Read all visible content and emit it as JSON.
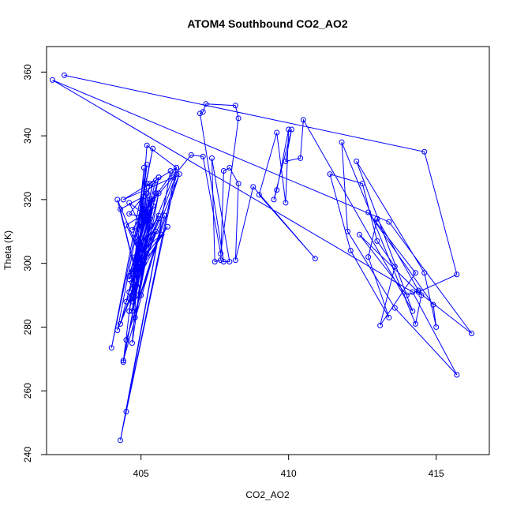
{
  "chart_data": {
    "type": "line",
    "title": "ATOM4 Southbound CO2_AO2",
    "xlabel": "CO2_AO2",
    "ylabel": "Theta (K)",
    "xlim": [
      401.8,
      416.8
    ],
    "ylim": [
      240,
      368
    ],
    "xticks": [
      405,
      410,
      415
    ],
    "yticks": [
      240,
      260,
      280,
      300,
      320,
      340,
      360
    ],
    "grid": false,
    "line_color": "#0000ff",
    "marker": "open-circle",
    "series": [
      {
        "x": [
          402.4,
          414.6,
          415.7,
          414.4,
          416.2,
          413.4,
          402.0,
          414.2,
          415.7,
          413.6,
          412.0,
          411.8,
          414.3,
          414.5,
          412.4,
          414.0,
          414.4,
          413.0,
          412.7,
          413.4,
          412.1,
          411.4,
          412.5,
          413.0,
          413.6,
          413.1,
          414.3,
          412.7,
          414.9,
          415.0,
          414.6,
          412.3,
          414.2,
          410.5,
          410.4,
          409.9,
          410.1,
          409.5,
          409.6,
          410.0,
          409.9,
          409.6,
          409.0,
          410.9,
          408.8,
          408.2,
          408.3,
          408.0,
          407.8,
          407.7,
          407.5,
          407.4,
          408.0,
          407.8,
          407.0,
          407.1,
          407.2,
          408.2,
          408.3,
          407.7,
          407.1,
          406.7,
          405.0,
          406.2,
          405.2,
          404.9,
          406.1,
          404.4,
          406.2,
          404.3,
          406.0,
          404.5,
          406.2,
          404.2,
          405.4,
          404.0,
          405.2,
          404.4,
          405.6,
          404.3,
          406.3,
          404.5,
          405.8,
          404.4,
          405.6,
          404.6,
          405.3,
          404.6,
          405.0,
          404.7,
          405.5,
          404.8,
          405.1,
          404.7,
          405.3,
          404.8,
          405.2,
          404.9,
          405.3,
          404.9,
          405.2,
          404.7,
          405.4,
          404.6,
          405.5,
          404.7,
          405.3,
          404.8,
          405.2,
          404.6,
          405.4,
          404.5,
          405.7,
          404.8,
          405.1,
          404.9,
          405.0,
          404.7,
          405.9,
          404.8,
          405.6,
          404.6,
          405.4,
          404.9,
          405.0,
          404.6,
          405.3,
          404.8,
          405.6,
          404.7,
          405.2,
          404.9,
          405.4,
          404.7,
          405.1,
          404.3,
          405.0,
          404.2,
          405.1,
          404.5,
          405.2,
          404.7,
          405.5,
          404.9,
          405.6,
          404.6,
          405.3,
          404.8
        ],
        "y": [
          359,
          335,
          296.5,
          291,
          278,
          313,
          357.5,
          291,
          265,
          286,
          310,
          338,
          281,
          290,
          309,
          290,
          291.5,
          314,
          302,
          283,
          304,
          328,
          325,
          307,
          299,
          280.5,
          297,
          316,
          287,
          280,
          297,
          332,
          285,
          345,
          333,
          332,
          342,
          320,
          323,
          342,
          319,
          341,
          321.5,
          301.5,
          324,
          301,
          325,
          330,
          329,
          301,
          300.5,
          333,
          300.5,
          300.5,
          347,
          347.5,
          350,
          349.5,
          345.5,
          303,
          333.5,
          334,
          315,
          330,
          337,
          300,
          327,
          320,
          330,
          244.5,
          329,
          253.5,
          328,
          279,
          336,
          273.5,
          331,
          269,
          327,
          281,
          328,
          276,
          315,
          269.5,
          327,
          315.5,
          314,
          319,
          311.5,
          310.5,
          322,
          308,
          318,
          290,
          325,
          297.5,
          306,
          303,
          316,
          300,
          325,
          285,
          320,
          296,
          310,
          290,
          312,
          300,
          322,
          285,
          318,
          288,
          309,
          302,
          330,
          307,
          308,
          294,
          311.5,
          298,
          314,
          291,
          325,
          306,
          300,
          295,
          312,
          283,
          322,
          288,
          303,
          290,
          318,
          275,
          321,
          317,
          290,
          320,
          300,
          312,
          316,
          297.5,
          326,
          304,
          315,
          296,
          320,
          289.5
        ]
      }
    ]
  }
}
